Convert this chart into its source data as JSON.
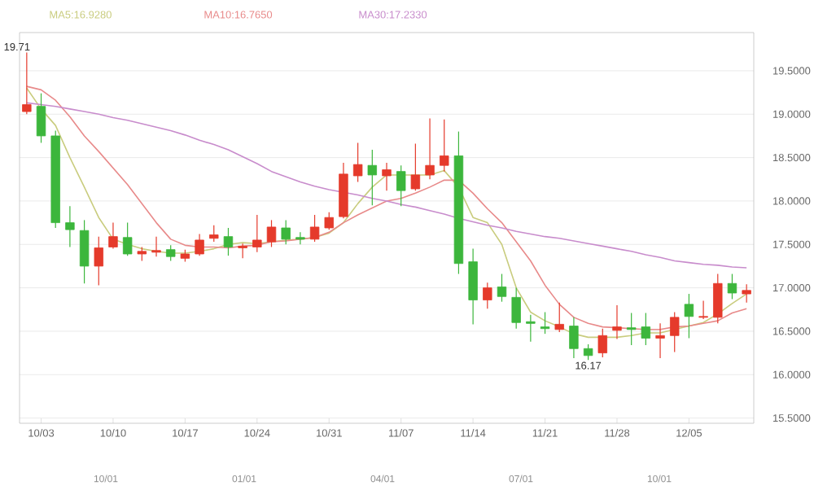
{
  "chart_data": {
    "type": "candlestick",
    "categories": [
      null,
      "10/03",
      null,
      null,
      null,
      null,
      "10/10",
      null,
      null,
      null,
      null,
      "10/17",
      null,
      null,
      null,
      null,
      "10/24",
      null,
      null,
      null,
      null,
      "10/31",
      null,
      null,
      null,
      null,
      "11/07",
      null,
      null,
      null,
      null,
      "11/14",
      null,
      null,
      null,
      null,
      "11/21",
      null,
      null,
      null,
      null,
      "11/28",
      null,
      null,
      null,
      null,
      "12/05",
      null,
      null,
      null,
      null
    ],
    "ohlc": [
      [
        19.03,
        19.71,
        19.0,
        19.11
      ],
      [
        19.09,
        19.24,
        18.67,
        18.75
      ],
      [
        18.75,
        18.81,
        17.69,
        17.75
      ],
      [
        17.75,
        17.94,
        17.47,
        17.67
      ],
      [
        17.66,
        17.78,
        17.05,
        17.25
      ],
      [
        17.25,
        17.59,
        17.03,
        17.46
      ],
      [
        17.47,
        17.75,
        17.45,
        17.59
      ],
      [
        17.58,
        17.75,
        17.37,
        17.39
      ],
      [
        17.39,
        17.47,
        17.31,
        17.42
      ],
      [
        17.41,
        17.59,
        17.36,
        17.43
      ],
      [
        17.44,
        17.49,
        17.31,
        17.36
      ],
      [
        17.34,
        17.44,
        17.3,
        17.39
      ],
      [
        17.39,
        17.62,
        17.37,
        17.55
      ],
      [
        17.57,
        17.72,
        17.53,
        17.61
      ],
      [
        17.59,
        17.69,
        17.37,
        17.47
      ],
      [
        17.46,
        17.51,
        17.34,
        17.48
      ],
      [
        17.47,
        17.84,
        17.41,
        17.55
      ],
      [
        17.53,
        17.78,
        17.47,
        17.7
      ],
      [
        17.69,
        17.78,
        17.5,
        17.56
      ],
      [
        17.58,
        17.64,
        17.5,
        17.56
      ],
      [
        17.56,
        17.84,
        17.53,
        17.7
      ],
      [
        17.69,
        17.87,
        17.67,
        17.81
      ],
      [
        17.82,
        18.44,
        17.8,
        18.31
      ],
      [
        18.29,
        18.67,
        18.22,
        18.42
      ],
      [
        18.41,
        18.59,
        17.95,
        18.3
      ],
      [
        18.29,
        18.44,
        18.12,
        18.36
      ],
      [
        18.34,
        18.41,
        17.94,
        18.12
      ],
      [
        18.14,
        18.66,
        18.12,
        18.3
      ],
      [
        18.3,
        18.95,
        18.25,
        18.41
      ],
      [
        18.41,
        18.94,
        18.34,
        18.52
      ],
      [
        18.52,
        18.8,
        17.16,
        17.28
      ],
      [
        17.3,
        17.45,
        16.58,
        16.86
      ],
      [
        16.86,
        17.06,
        16.76,
        17.0
      ],
      [
        17.01,
        17.16,
        16.84,
        16.9
      ],
      [
        16.89,
        17.0,
        16.53,
        16.6
      ],
      [
        16.61,
        16.69,
        16.38,
        16.59
      ],
      [
        16.55,
        16.72,
        16.47,
        16.53
      ],
      [
        16.52,
        16.83,
        16.49,
        16.58
      ],
      [
        16.56,
        16.66,
        16.19,
        16.3
      ],
      [
        16.3,
        16.35,
        16.17,
        16.22
      ],
      [
        16.25,
        16.53,
        16.2,
        16.45
      ],
      [
        16.51,
        16.8,
        16.41,
        16.55
      ],
      [
        16.54,
        16.71,
        16.34,
        16.52
      ],
      [
        16.55,
        16.71,
        16.34,
        16.42
      ],
      [
        16.42,
        16.59,
        16.19,
        16.45
      ],
      [
        16.45,
        16.72,
        16.26,
        16.66
      ],
      [
        16.81,
        16.93,
        16.42,
        16.67
      ],
      [
        16.66,
        16.85,
        16.64,
        16.67
      ],
      [
        16.66,
        17.16,
        16.59,
        17.05
      ],
      [
        17.05,
        17.16,
        16.87,
        16.94
      ],
      [
        16.93,
        17.04,
        16.83,
        16.97
      ]
    ],
    "colors": [
      "#e53a2b",
      "#3cb63c",
      "#3cb63c",
      "#3cb63c",
      "#3cb63c",
      "#e53a2b",
      "#e53a2b",
      "#3cb63c",
      "#e53a2b",
      "#e53a2b",
      "#3cb63c",
      "#e53a2b",
      "#e53a2b",
      "#e53a2b",
      "#3cb63c",
      "#e53a2b",
      "#e53a2b",
      "#e53a2b",
      "#3cb63c",
      "#3cb63c",
      "#e53a2b",
      "#e53a2b",
      "#e53a2b",
      "#e53a2b",
      "#3cb63c",
      "#e53a2b",
      "#3cb63c",
      "#e53a2b",
      "#e53a2b",
      "#e53a2b",
      "#3cb63c",
      "#3cb63c",
      "#e53a2b",
      "#3cb63c",
      "#3cb63c",
      "#3cb63c",
      "#3cb63c",
      "#e53a2b",
      "#3cb63c",
      "#3cb63c",
      "#e53a2b",
      "#e53a2b",
      "#3cb63c",
      "#3cb63c",
      "#e53a2b",
      "#e53a2b",
      "#3cb63c",
      "#e53a2b",
      "#e53a2b",
      "#3cb63c",
      "#e53a2b"
    ],
    "series": [
      {
        "name": "MA5:16.9280",
        "type": "line",
        "color": "#c9cc7e",
        "values": [
          19.3,
          19.06,
          18.87,
          18.5,
          18.16,
          17.81,
          17.56,
          17.5,
          17.45,
          17.42,
          17.4,
          17.4,
          17.42,
          17.45,
          17.5,
          17.52,
          17.51,
          17.53,
          17.55,
          17.56,
          17.58,
          17.63,
          17.75,
          17.97,
          18.16,
          18.3,
          18.3,
          18.3,
          18.3,
          18.35,
          18.16,
          17.81,
          17.75,
          17.5,
          17.0,
          16.72,
          16.62,
          16.55,
          16.47,
          16.43,
          16.43,
          16.43,
          16.45,
          16.48,
          16.48,
          16.52,
          16.56,
          16.6,
          16.7,
          16.82,
          16.93
        ]
      },
      {
        "name": "MA10:16.7650",
        "type": "line",
        "color": "#e88a8a",
        "values": [
          19.32,
          19.28,
          19.16,
          18.97,
          18.75,
          18.57,
          18.38,
          18.19,
          17.97,
          17.75,
          17.56,
          17.49,
          17.47,
          17.47,
          17.46,
          17.48,
          17.49,
          17.53,
          17.54,
          17.56,
          17.58,
          17.64,
          17.75,
          17.84,
          17.92,
          18.0,
          18.03,
          18.09,
          18.16,
          18.24,
          18.24,
          18.09,
          17.91,
          17.75,
          17.53,
          17.31,
          17.03,
          16.81,
          16.66,
          16.59,
          16.55,
          16.54,
          16.53,
          16.52,
          16.52,
          16.55,
          16.56,
          16.59,
          16.62,
          16.71,
          16.76
        ]
      },
      {
        "name": "MA30:17.2330",
        "type": "line",
        "color": "#c88ccc",
        "values": [
          19.13,
          19.11,
          19.09,
          19.06,
          19.03,
          19.0,
          18.96,
          18.93,
          18.89,
          18.85,
          18.81,
          18.76,
          18.7,
          18.65,
          18.59,
          18.51,
          18.43,
          18.34,
          18.28,
          18.22,
          18.17,
          18.13,
          18.1,
          18.07,
          18.03,
          18.0,
          17.96,
          17.93,
          17.89,
          17.85,
          17.8,
          17.76,
          17.72,
          17.69,
          17.65,
          17.62,
          17.59,
          17.57,
          17.54,
          17.51,
          17.48,
          17.45,
          17.42,
          17.38,
          17.35,
          17.31,
          17.29,
          17.27,
          17.26,
          17.24,
          17.23
        ]
      }
    ],
    "ylim": [
      15.44,
      19.94
    ],
    "yticks": [
      {
        "value": 15.5,
        "label": "15.5000"
      },
      {
        "value": 16.0,
        "label": "16.0000"
      },
      {
        "value": 16.5,
        "label": "16.5000"
      },
      {
        "value": 17.0,
        "label": "17.0000"
      },
      {
        "value": 17.5,
        "label": "17.5000"
      },
      {
        "value": 18.0,
        "label": "18.0000"
      },
      {
        "value": 18.5,
        "label": "18.5000"
      },
      {
        "value": 19.0,
        "label": "19.0000"
      },
      {
        "value": 19.5,
        "label": "19.5000"
      }
    ],
    "grid": "y",
    "legend": "top left",
    "marker": "none",
    "line_style": "solid",
    "annotations": [
      "19.71",
      "16.17",
      "10/01",
      "01/01",
      "04/01",
      "07/01",
      "10/01"
    ]
  }
}
